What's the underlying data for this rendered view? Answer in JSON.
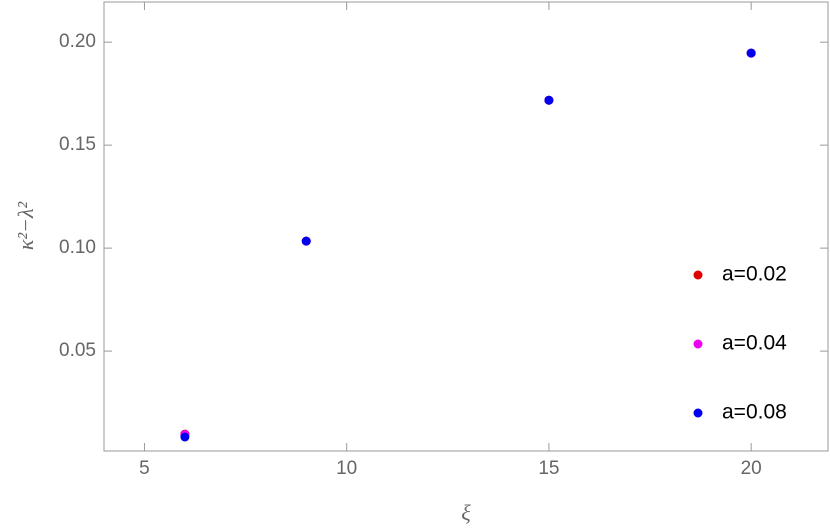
{
  "chart_data": {
    "type": "scatter",
    "xlabel": "ξ",
    "ylabel": "κ²−λ²",
    "xlim": [
      4,
      21.9
    ],
    "ylim": [
      0.0015,
      0.2195
    ],
    "xticks": [
      5,
      10,
      15,
      20
    ],
    "yticks": [
      0.05,
      {
        "value": 0.1,
        "label": "0.10"
      },
      0.15,
      {
        "value": 0.2,
        "label": "0.20"
      }
    ],
    "legend": "right",
    "series": [
      {
        "name": "a=0.02",
        "color": "#e00000",
        "x": [
          6,
          9,
          15,
          20
        ],
        "values": [
          0.0097,
          0.1034,
          0.1718,
          0.1947
        ]
      },
      {
        "name": "a=0.04",
        "color": "#ee00ee",
        "x": [
          6,
          9,
          15,
          20
        ],
        "values": [
          0.0095,
          0.1034,
          0.1718,
          0.1947
        ]
      },
      {
        "name": "a=0.08",
        "color": "#0000ee",
        "x": [
          6,
          9,
          15,
          20
        ],
        "values": [
          0.0083,
          0.1034,
          0.1718,
          0.1947
        ]
      }
    ]
  }
}
